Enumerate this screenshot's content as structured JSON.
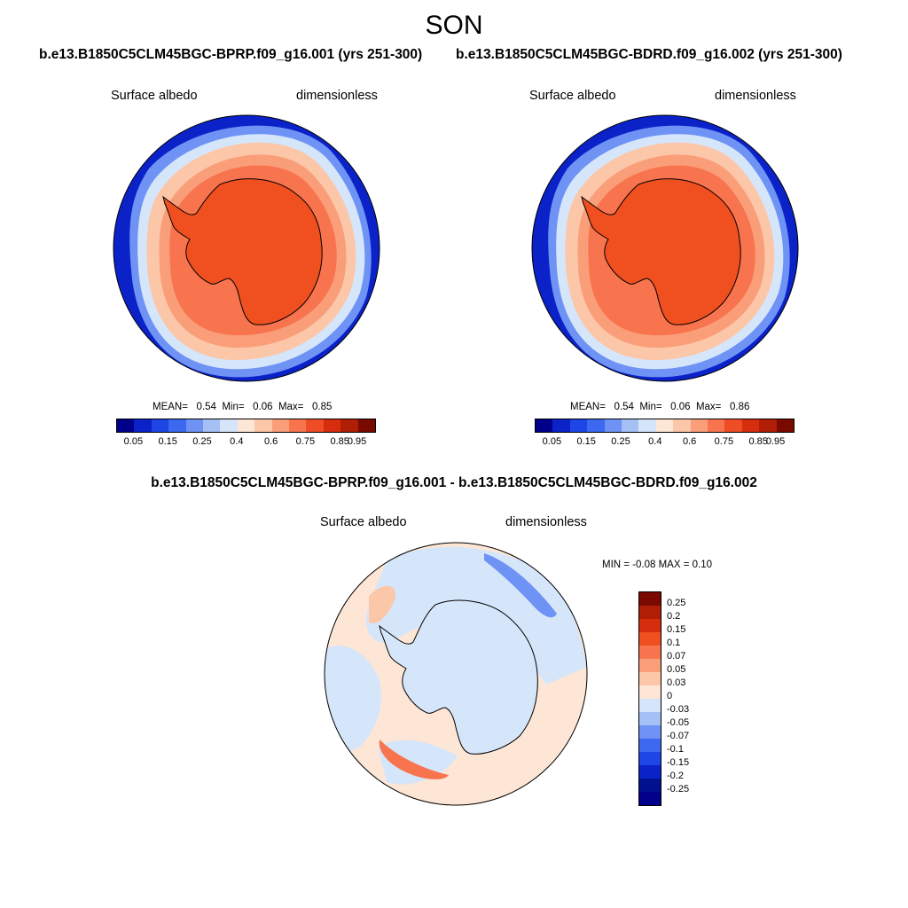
{
  "figure": {
    "season": "SON",
    "panels": [
      {
        "case": "b.e13.B1850C5CLM45BGC-BPRP.f09_g16.001 (yrs 251-300)",
        "variable": "Surface albedo",
        "units": "dimensionless",
        "stats": {
          "mean_label": "MEAN=",
          "mean": "0.54",
          "min_label": "Min=",
          "min": "0.06",
          "max_label": "Max=",
          "max": "0.85"
        }
      },
      {
        "case": "b.e13.B1850C5CLM45BGC-BDRD.f09_g16.002 (yrs 251-300)",
        "variable": "Surface albedo",
        "units": "dimensionless",
        "stats": {
          "mean_label": "MEAN=",
          "mean": "0.54",
          "min_label": "Min=",
          "min": "0.06",
          "max_label": "Max=",
          "max": "0.86"
        }
      }
    ],
    "diff": {
      "title": "b.e13.B1850C5CLM45BGC-BPRP.f09_g16.001 - b.e13.B1850C5CLM45BGC-BDRD.f09_g16.002",
      "variable": "Surface albedo",
      "units": "dimensionless",
      "minmax": "MIN =  -0.08 MAX =   0.10"
    },
    "colorbar": {
      "colors": [
        "#00008a",
        "#0a22c8",
        "#1e46e6",
        "#3c69f0",
        "#6e93f5",
        "#a5c0f5",
        "#d6e6fa",
        "#fde6d5",
        "#fcc6a8",
        "#fa9e7a",
        "#f7744e",
        "#ef4d25",
        "#d62d0e",
        "#b01e06",
        "#7a0a00"
      ],
      "labels": [
        "0.05",
        "0.15",
        "0.25",
        "0.4",
        "0.6",
        "0.75",
        "0.85",
        "0.95"
      ]
    },
    "diff_colorbar": {
      "colors": [
        "#7a0a00",
        "#b01e06",
        "#d62d0e",
        "#f04f1f",
        "#f7744e",
        "#fa9e7a",
        "#fcc6a8",
        "#fde6d5",
        "#d6e6fa",
        "#a5c0f5",
        "#6e93f5",
        "#3c69f0",
        "#1e46e6",
        "#0a22c8",
        "#00108f",
        "#00008a"
      ],
      "labels": [
        "0.25",
        "0.2",
        "0.15",
        "0.1",
        "0.07",
        "0.05",
        "0.03",
        "0",
        "-0.03",
        "-0.05",
        "-0.07",
        "-0.1",
        "-0.15",
        "-0.2",
        "-0.25"
      ]
    }
  }
}
